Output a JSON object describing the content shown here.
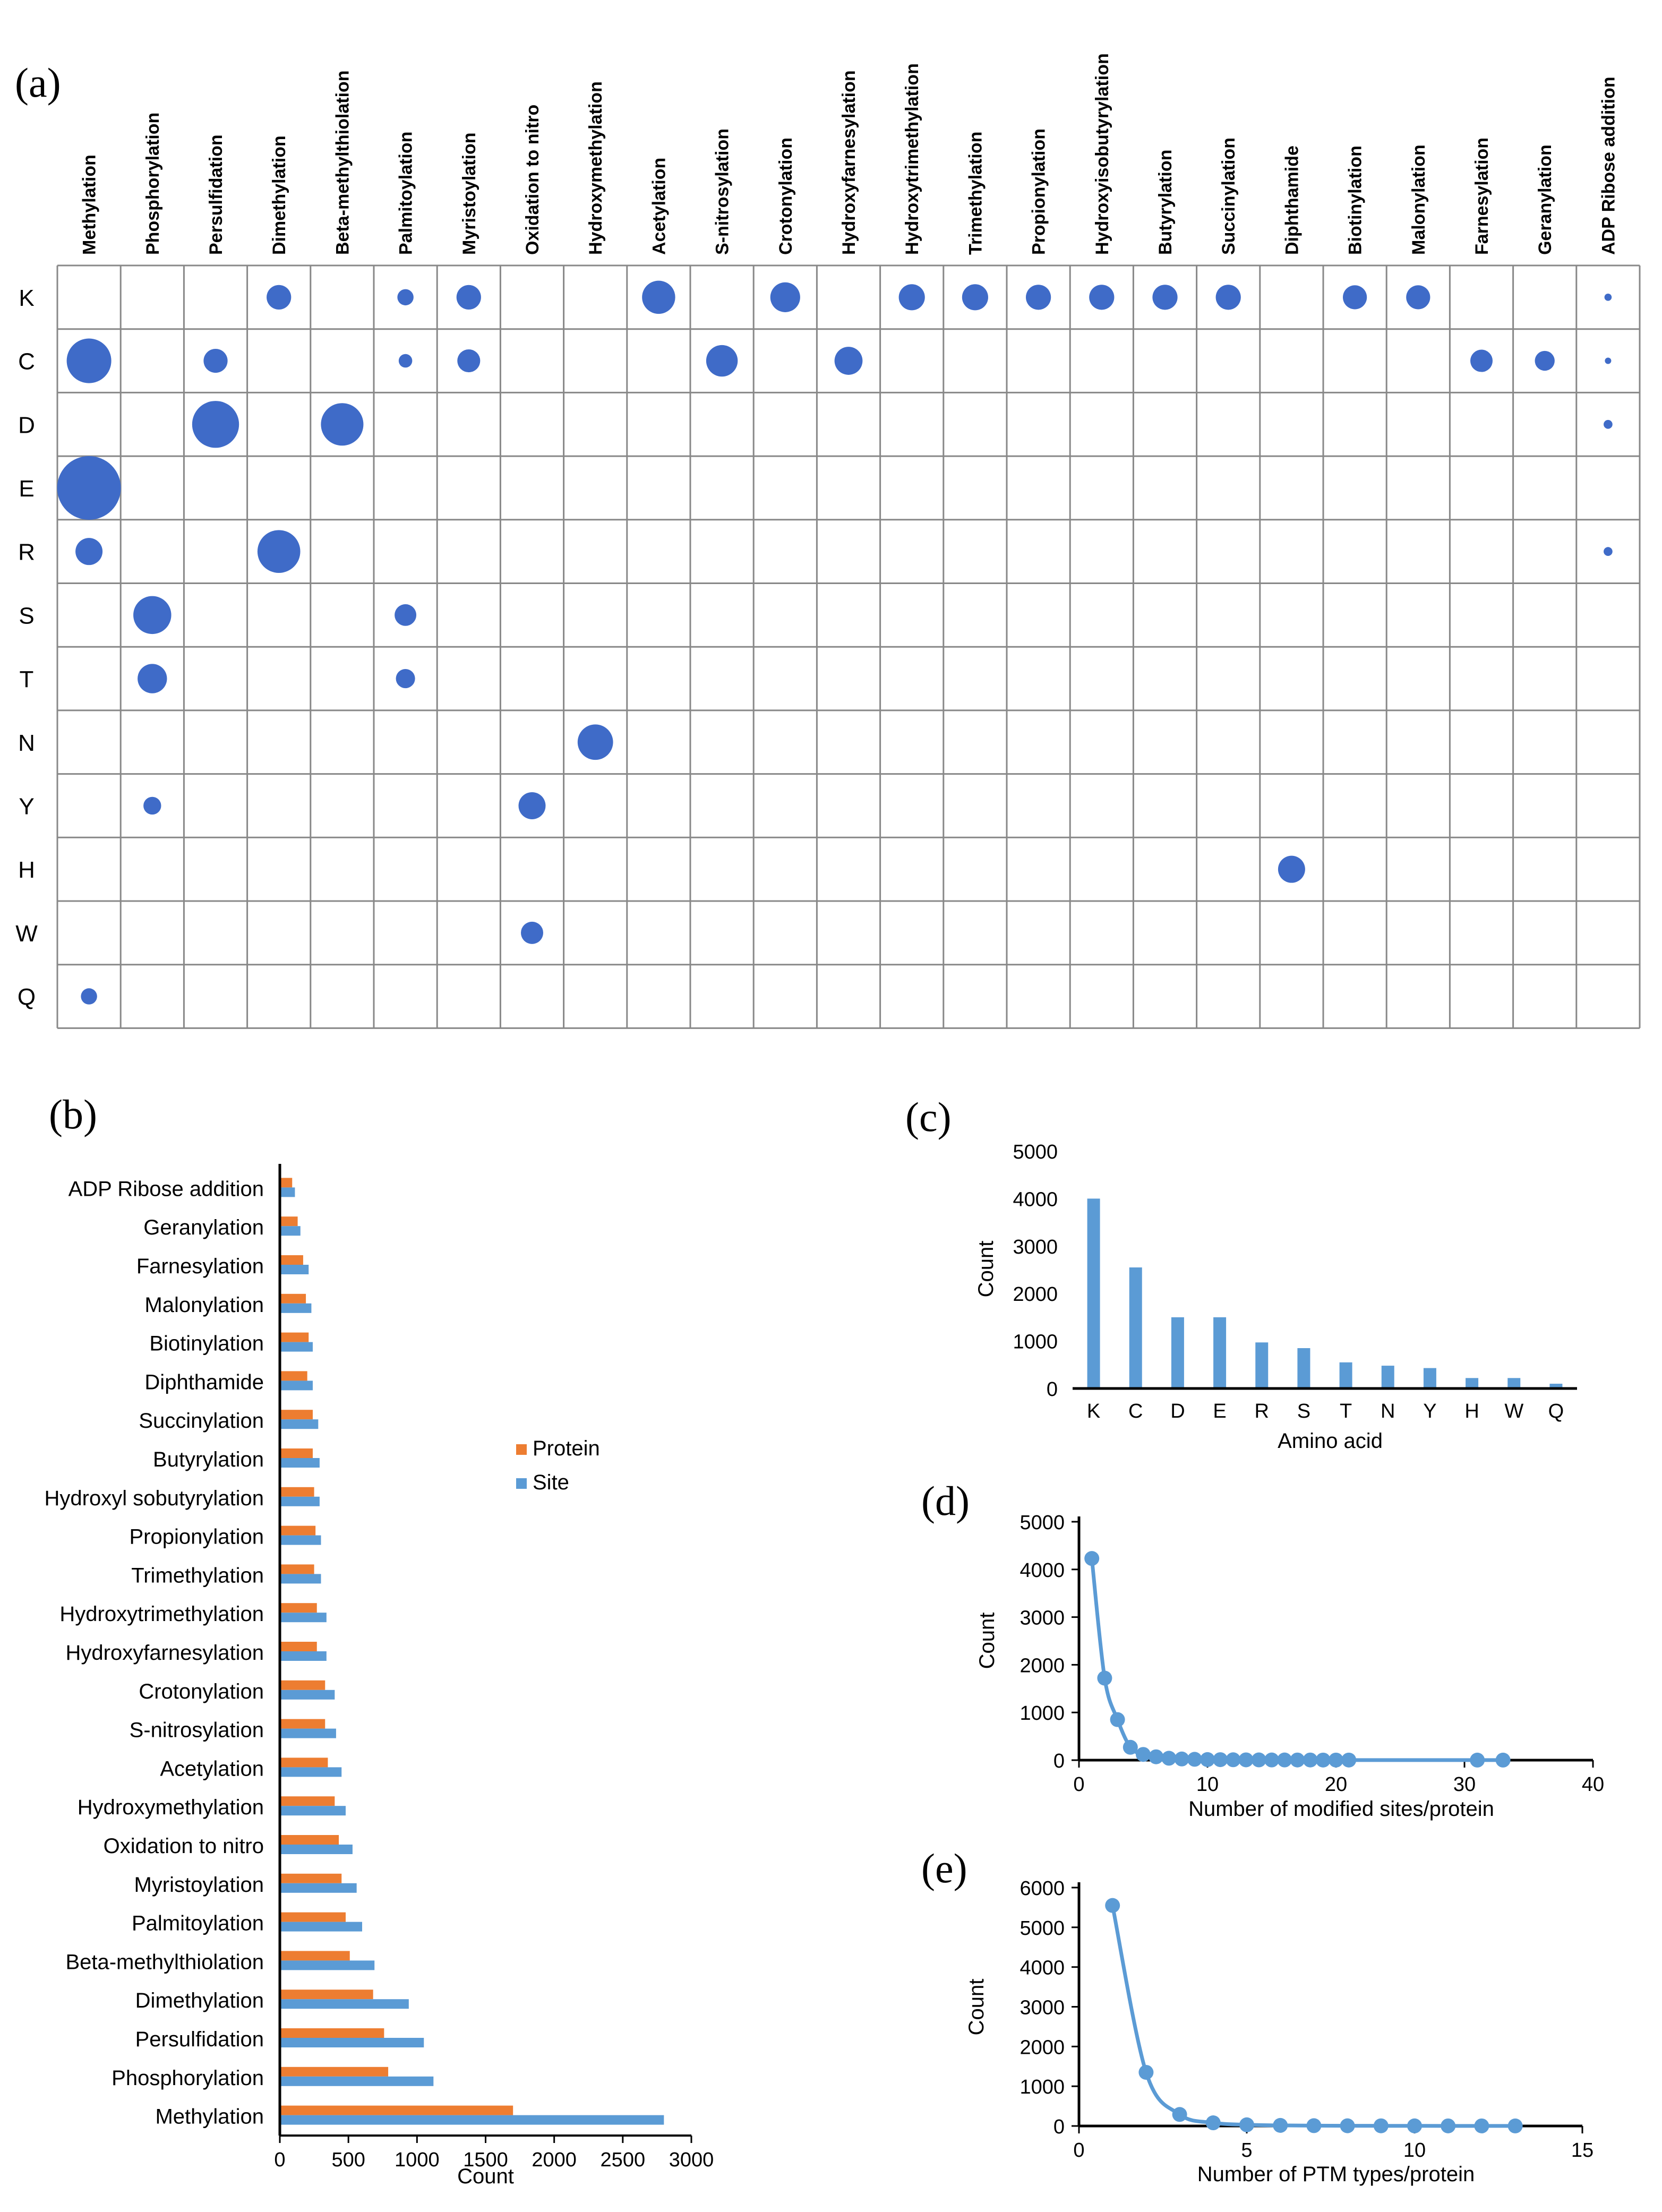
{
  "colors": {
    "bubble": "#3F6BC8",
    "protein": "#ED7D31",
    "site": "#5B9BD5",
    "line": "#5B9BD5",
    "grid": "#888888"
  },
  "chart_data": [
    {
      "panel": "(a)",
      "type": "bubble-matrix",
      "columns": [
        "Methylation",
        "Phosphorylation",
        "Persulfidation",
        "Dimethylation",
        "Beta-methylthiolation",
        "Palmitoylation",
        "Myristoylation",
        "Oxidation to nitro",
        "Hydroxymethylation",
        "Acetylation",
        "S-nitrosylation",
        "Crotonylation",
        "Hydroxyfarnesylation",
        "Hydroxytrimethylation",
        "Trimethylation",
        "Propionylation",
        "Hydroxyisobutyrylation",
        "Butyrylation",
        "Succinylation",
        "Diphthamide",
        "Biotinylation",
        "Malonylation",
        "Farnesylation",
        "Geranylation",
        "ADP Ribose addition"
      ],
      "rows": [
        "K",
        "C",
        "D",
        "E",
        "R",
        "S",
        "T",
        "N",
        "Y",
        "H",
        "W",
        "Q"
      ],
      "points": [
        {
          "row": "K",
          "col": "Dimethylation",
          "size": 230
        },
        {
          "row": "K",
          "col": "Palmitoylation",
          "size": 100
        },
        {
          "row": "K",
          "col": "Myristoylation",
          "size": 230
        },
        {
          "row": "K",
          "col": "Acetylation",
          "size": 420
        },
        {
          "row": "K",
          "col": "Crotonylation",
          "size": 340
        },
        {
          "row": "K",
          "col": "Hydroxytrimethylation",
          "size": 260
        },
        {
          "row": "K",
          "col": "Trimethylation",
          "size": 260
        },
        {
          "row": "K",
          "col": "Propionylation",
          "size": 240
        },
        {
          "row": "K",
          "col": "Hydroxyisobutyrylation",
          "size": 240
        },
        {
          "row": "K",
          "col": "Butyrylation",
          "size": 240
        },
        {
          "row": "K",
          "col": "Succinylation",
          "size": 240
        },
        {
          "row": "K",
          "col": "Biotinylation",
          "size": 220
        },
        {
          "row": "K",
          "col": "Malonylation",
          "size": 220
        },
        {
          "row": "K",
          "col": "ADP Ribose addition",
          "size": 20
        },
        {
          "row": "C",
          "col": "Methylation",
          "size": 760
        },
        {
          "row": "C",
          "col": "Persulfidation",
          "size": 220
        },
        {
          "row": "C",
          "col": "Palmitoylation",
          "size": 70
        },
        {
          "row": "C",
          "col": "Myristoylation",
          "size": 200
        },
        {
          "row": "C",
          "col": "S-nitrosylation",
          "size": 380
        },
        {
          "row": "C",
          "col": "Hydroxyfarnesylation",
          "size": 300
        },
        {
          "row": "C",
          "col": "Farnesylation",
          "size": 190
        },
        {
          "row": "C",
          "col": "Geranylation",
          "size": 150
        },
        {
          "row": "C",
          "col": "ADP Ribose addition",
          "size": 8
        },
        {
          "row": "D",
          "col": "Persulfidation",
          "size": 840
        },
        {
          "row": "D",
          "col": "Beta-methylthiolation",
          "size": 690
        },
        {
          "row": "D",
          "col": "ADP Ribose addition",
          "size": 30
        },
        {
          "row": "E",
          "col": "Methylation",
          "size": 1550
        },
        {
          "row": "R",
          "col": "Methylation",
          "size": 280
        },
        {
          "row": "R",
          "col": "Dimethylation",
          "size": 700
        },
        {
          "row": "R",
          "col": "ADP Ribose addition",
          "size": 30
        },
        {
          "row": "S",
          "col": "Phosphorylation",
          "size": 550
        },
        {
          "row": "S",
          "col": "Palmitoylation",
          "size": 180
        },
        {
          "row": "T",
          "col": "Phosphorylation",
          "size": 330
        },
        {
          "row": "T",
          "col": "Palmitoylation",
          "size": 140
        },
        {
          "row": "N",
          "col": "Hydroxymethylation",
          "size": 480
        },
        {
          "row": "Y",
          "col": "Phosphorylation",
          "size": 120
        },
        {
          "row": "Y",
          "col": "Oxidation to nitro",
          "size": 280
        },
        {
          "row": "H",
          "col": "Diphthamide",
          "size": 280
        },
        {
          "row": "W",
          "col": "Oxidation to nitro",
          "size": 190
        },
        {
          "row": "Q",
          "col": "Methylation",
          "size": 100
        }
      ]
    },
    {
      "panel": "(b)",
      "type": "bar",
      "orientation": "horizontal",
      "categories": [
        "ADP Ribose addition",
        "Geranylation",
        "Farnesylation",
        "Malonylation",
        "Biotinylation",
        "Diphthamide",
        "Succinylation",
        "Butyrylation",
        "Hydroxyl sobutyrylation",
        "Propionylation",
        "Trimethylation",
        "Hydroxytrimethylation",
        "Hydroxyfarnesylation",
        "Crotonylation",
        "S-nitrosylation",
        "Acetylation",
        "Hydroxymethylation",
        "Oxidation to nitro",
        "Myristoylation",
        "Palmitoylation",
        "Beta-methylthiolation",
        "Dimethylation",
        "Persulfidation",
        "Phosphorylation",
        "Methylation"
      ],
      "series": [
        {
          "name": "Protein",
          "values": [
            90,
            130,
            170,
            190,
            210,
            200,
            240,
            240,
            250,
            260,
            250,
            270,
            270,
            330,
            330,
            350,
            400,
            430,
            450,
            480,
            510,
            680,
            760,
            790,
            1700
          ]
        },
        {
          "name": "Site",
          "values": [
            110,
            150,
            210,
            230,
            240,
            240,
            280,
            290,
            290,
            300,
            300,
            340,
            340,
            400,
            410,
            450,
            480,
            530,
            560,
            600,
            690,
            940,
            1050,
            1120,
            2800
          ]
        }
      ],
      "xlabel": "Count",
      "xlim": [
        0,
        3000
      ],
      "xticks": [
        "0",
        "500",
        "1000",
        "1500",
        "2000",
        "2500",
        "3000"
      ],
      "legend": "right"
    },
    {
      "panel": "(c)",
      "type": "bar",
      "categories": [
        "K",
        "C",
        "D",
        "E",
        "R",
        "S",
        "T",
        "N",
        "Y",
        "H",
        "W",
        "Q"
      ],
      "values": [
        4000,
        2550,
        1500,
        1500,
        970,
        850,
        550,
        480,
        430,
        220,
        220,
        100
      ],
      "xlabel": "Amino acid",
      "ylabel": "Count",
      "ylim": [
        0,
        5000
      ],
      "yticks": [
        "0",
        "1000",
        "2000",
        "3000",
        "4000",
        "5000"
      ]
    },
    {
      "panel": "(d)",
      "type": "line",
      "x": [
        1,
        2,
        3,
        4,
        5,
        6,
        7,
        8,
        9,
        10,
        11,
        12,
        13,
        14,
        15,
        16,
        17,
        18,
        19,
        20,
        21,
        31,
        33
      ],
      "y": [
        4230,
        1720,
        850,
        270,
        120,
        70,
        40,
        25,
        18,
        12,
        10,
        8,
        6,
        5,
        4,
        4,
        3,
        3,
        2,
        2,
        2,
        1,
        1
      ],
      "xlabel": "Number of modified sites/protein",
      "ylabel": "Count",
      "xlim": [
        0,
        40
      ],
      "ylim": [
        0,
        5000
      ],
      "xticks": [
        "0",
        "10",
        "20",
        "30",
        "40"
      ],
      "yticks": [
        "0",
        "1000",
        "2000",
        "3000",
        "4000",
        "5000"
      ]
    },
    {
      "panel": "(e)",
      "type": "line",
      "x": [
        1,
        2,
        3,
        4,
        5,
        6,
        7,
        8,
        9,
        10,
        11,
        12,
        13
      ],
      "y": [
        5550,
        1350,
        290,
        80,
        30,
        15,
        8,
        5,
        4,
        3,
        2,
        2,
        1
      ],
      "xlabel": "Number of PTM types/protein",
      "ylabel": "Count",
      "xlim": [
        0,
        15
      ],
      "ylim": [
        0,
        6000
      ],
      "xticks": [
        "0",
        "5",
        "10",
        "15"
      ],
      "yticks": [
        "0",
        "1000",
        "2000",
        "3000",
        "4000",
        "5000",
        "6000"
      ]
    }
  ]
}
